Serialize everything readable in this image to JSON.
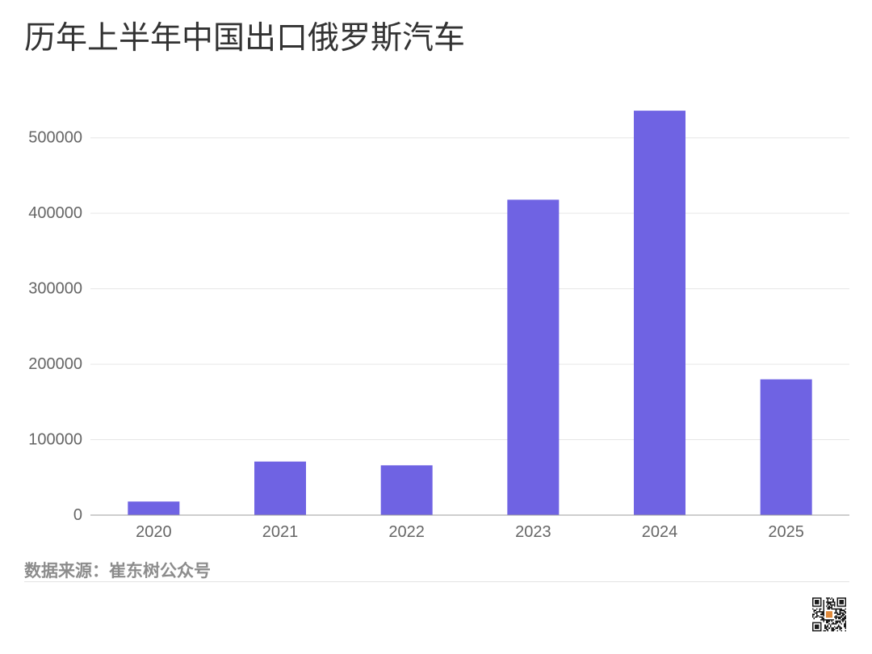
{
  "colors": {
    "bar": "#6f63e3",
    "title_text": "#333333",
    "tick_text": "#666666",
    "gridline": "#e6e6e6",
    "baseline": "#9e9e9e",
    "source_text": "#8c8c8c"
  },
  "source": "数据来源：崔东树公众号",
  "chart_data": {
    "type": "bar",
    "title": "历年上半年中国出口俄罗斯汽车",
    "categories": [
      "2020",
      "2021",
      "2022",
      "2023",
      "2024",
      "2025"
    ],
    "values": [
      18000,
      71000,
      66000,
      418000,
      536000,
      180000
    ],
    "xlabel": "",
    "ylabel": "",
    "ylim": [
      0,
      550000
    ],
    "yticks": [
      0,
      100000,
      200000,
      300000,
      400000,
      500000
    ],
    "grid": true,
    "legend": "none"
  }
}
